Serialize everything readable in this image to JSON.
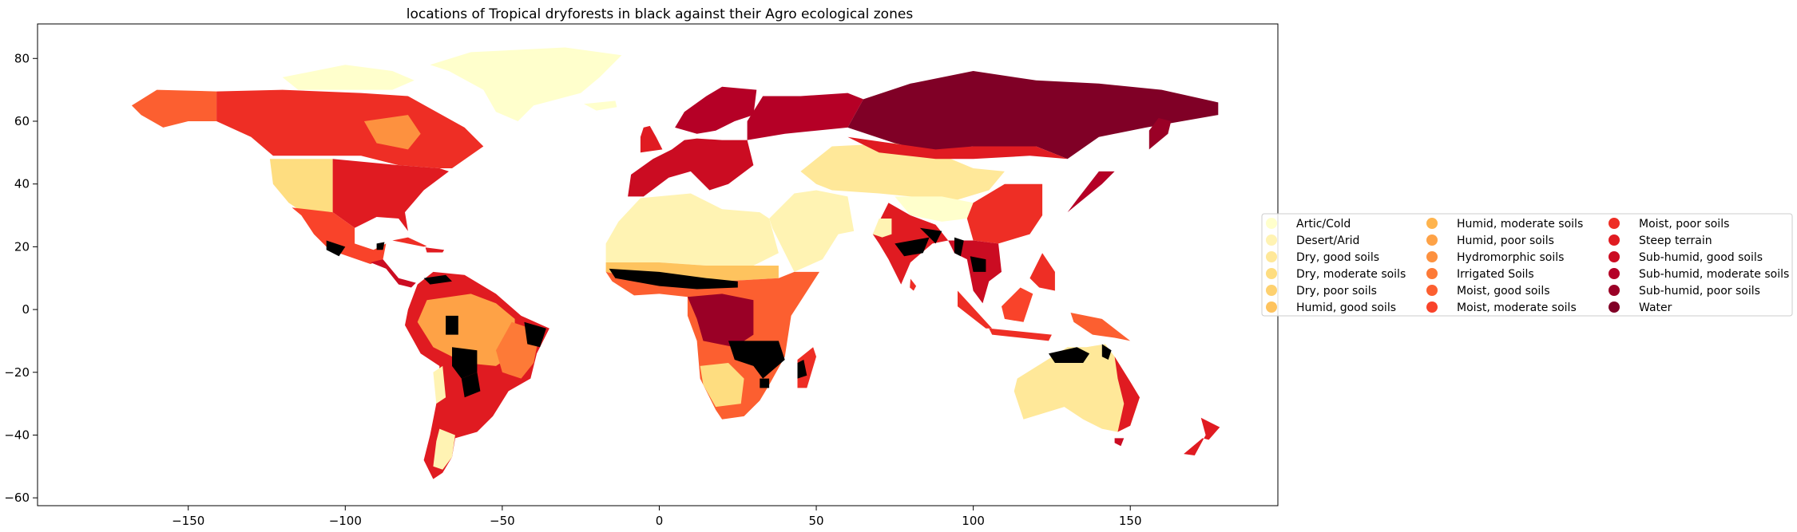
{
  "chart_data": {
    "type": "map",
    "title": "locations of Tropical dryforests in black against their Agro ecological zones",
    "xlabel": "",
    "ylabel": "",
    "xlim": [
      -198,
      197
    ],
    "ylim": [
      -62.5,
      91
    ],
    "x_ticks": [
      -150,
      -100,
      -50,
      0,
      50,
      100,
      150
    ],
    "y_ticks": [
      -60,
      -40,
      -20,
      0,
      20,
      40,
      60,
      80
    ],
    "grid": false,
    "overlay_color": "#000000",
    "legend_location": "center-left outside",
    "legend_columns": 3,
    "legend": [
      {
        "label": "Artic/Cold",
        "color": "#ffffcc"
      },
      {
        "label": "Desert/Arid",
        "color": "#fff3b3"
      },
      {
        "label": "Dry, good soils",
        "color": "#ffe899"
      },
      {
        "label": "Dry, moderate soils",
        "color": "#fedd80"
      },
      {
        "label": "Dry, poor soils",
        "color": "#fed16f"
      },
      {
        "label": "Humid, good soils",
        "color": "#fec35e"
      },
      {
        "label": "Humid, moderate soils",
        "color": "#feb44e"
      },
      {
        "label": "Humid, poor soils",
        "color": "#fea246"
      },
      {
        "label": "Hydromorphic soils",
        "color": "#fd913f"
      },
      {
        "label": "Irrigated Soils",
        "color": "#fd7a37"
      },
      {
        "label": "Moist, good soils",
        "color": "#fc5f30"
      },
      {
        "label": "Moist, moderate soils",
        "color": "#f9432a"
      },
      {
        "label": "Moist, poor soils",
        "color": "#ee2e25"
      },
      {
        "label": "Steep terrain",
        "color": "#e01b21"
      },
      {
        "label": "Sub-humid, good soils",
        "color": "#cb0c22"
      },
      {
        "label": "Sub-humid, moderate soils",
        "color": "#b50026"
      },
      {
        "label": "Sub-humid, poor soils",
        "color": "#9a0026"
      },
      {
        "label": "Water",
        "color": "#800026"
      }
    ]
  }
}
